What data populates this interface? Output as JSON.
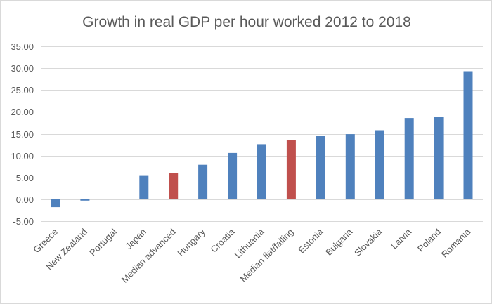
{
  "chart_data": {
    "type": "bar",
    "title": "Growth in real GDP per hour worked 2012 to 2018",
    "xlabel": "",
    "ylabel": "",
    "ylim": [
      -5,
      35
    ],
    "yticks": [
      -5,
      0,
      5,
      10,
      15,
      20,
      25,
      30,
      35
    ],
    "ytick_labels": [
      "-5.00",
      "0.00",
      "5.00",
      "10.00",
      "15.00",
      "20.00",
      "25.00",
      "30.00",
      "35.00"
    ],
    "grid": true,
    "legend": "none",
    "categories": [
      "Greece",
      "New Zealand",
      "Portugal",
      "Japan",
      "Median advanced",
      "Hungary",
      "Croatia",
      "Lithuania",
      "Median flat/falling",
      "Estonia",
      "Bulgaria",
      "Slovakia",
      "Latvia",
      "Poland",
      "Romania"
    ],
    "values": [
      -1.8,
      -0.3,
      0.0,
      5.5,
      6.0,
      7.9,
      10.6,
      12.6,
      13.5,
      14.6,
      14.9,
      15.8,
      18.6,
      18.9,
      29.3
    ],
    "highlight": [
      false,
      false,
      false,
      false,
      true,
      false,
      false,
      false,
      true,
      false,
      false,
      false,
      false,
      false,
      false
    ],
    "colors": {
      "default": "#4f81bd",
      "highlight": "#c0504d",
      "text": "#595959",
      "grid": "#d9d9d9"
    }
  }
}
